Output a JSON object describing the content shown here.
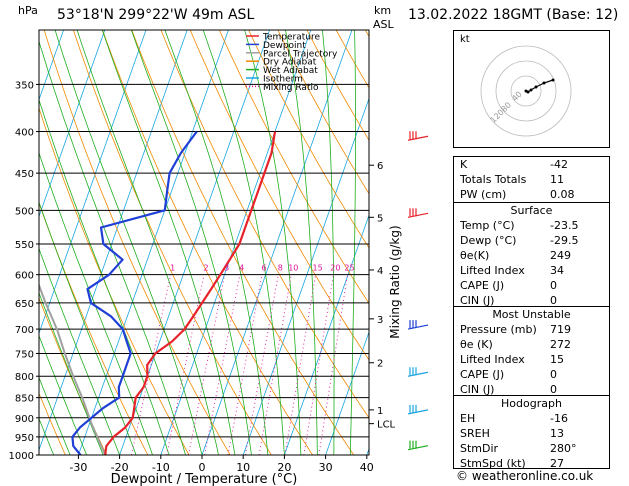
{
  "header": {
    "hpa_label": "hPa",
    "location": "53°18'N 299°22'W 49m ASL",
    "km_label": "km",
    "asl_label": "ASL",
    "datetime": "13.02.2022 18GMT (Base: 12)"
  },
  "footer": {
    "copyright": "© weatheronline.co.uk"
  },
  "chart_data": {
    "type": "skew-t",
    "xlabel": "Dewpoint / Temperature (°C)",
    "ylabel_right": "Mixing Ratio (g/kg)",
    "x_ticks": [
      -30,
      -20,
      -10,
      0,
      10,
      20,
      30,
      40
    ],
    "xlim": [
      -40,
      40
    ],
    "pressure_ticks": [
      350,
      400,
      450,
      500,
      550,
      600,
      650,
      700,
      750,
      800,
      850,
      900,
      950,
      1000
    ],
    "pressure_range": [
      300,
      1000
    ],
    "km_ticks": [
      {
        "label": "1",
        "p": 880
      },
      {
        "label": "2",
        "p": 770
      },
      {
        "label": "3",
        "p": 680
      },
      {
        "label": "4",
        "p": 592
      },
      {
        "label": "5",
        "p": 510
      },
      {
        "label": "6",
        "p": 440
      },
      {
        "label": "LCL",
        "p": 915
      }
    ],
    "mixing_ratio_labels": [
      "1",
      "2",
      "3",
      "4",
      "6",
      "8",
      "10",
      "15",
      "20",
      "25"
    ],
    "legend": [
      {
        "name": "Temperature",
        "color": "#e8222a",
        "style": "solid"
      },
      {
        "name": "Dewpoint",
        "color": "#1f3fd6",
        "style": "solid"
      },
      {
        "name": "Parcel Trajectory",
        "color": "#a0a0a0",
        "style": "solid"
      },
      {
        "name": "Dry Adiabat",
        "color": "#f08a00",
        "style": "solid"
      },
      {
        "name": "Wet Adiabat",
        "color": "#1fae1f",
        "style": "solid"
      },
      {
        "name": "Isotherm",
        "color": "#1aa6e0",
        "style": "solid"
      },
      {
        "name": "Mixing Ratio",
        "color": "#e0149c",
        "style": "dotted"
      }
    ],
    "series": [
      {
        "name": "Temperature",
        "points": [
          [
            1000,
            -23.5
          ],
          [
            975,
            -24
          ],
          [
            950,
            -23
          ],
          [
            925,
            -21
          ],
          [
            900,
            -20
          ],
          [
            875,
            -20.5
          ],
          [
            850,
            -21
          ],
          [
            825,
            -20
          ],
          [
            800,
            -20
          ],
          [
            775,
            -21
          ],
          [
            750,
            -20
          ],
          [
            725,
            -17
          ],
          [
            700,
            -15
          ],
          [
            675,
            -14
          ],
          [
            650,
            -13
          ],
          [
            625,
            -12
          ],
          [
            600,
            -11
          ],
          [
            575,
            -10
          ],
          [
            550,
            -9
          ],
          [
            525,
            -9
          ],
          [
            500,
            -9
          ],
          [
            475,
            -9
          ],
          [
            450,
            -9
          ],
          [
            425,
            -9
          ],
          [
            400,
            -10
          ]
        ]
      },
      {
        "name": "Dewpoint",
        "points": [
          [
            1000,
            -29.5
          ],
          [
            975,
            -32
          ],
          [
            950,
            -33
          ],
          [
            925,
            -32
          ],
          [
            900,
            -30
          ],
          [
            875,
            -28
          ],
          [
            850,
            -25
          ],
          [
            825,
            -26
          ],
          [
            800,
            -26
          ],
          [
            775,
            -26
          ],
          [
            750,
            -26
          ],
          [
            725,
            -28
          ],
          [
            700,
            -30
          ],
          [
            675,
            -34
          ],
          [
            650,
            -40
          ],
          [
            625,
            -42
          ],
          [
            600,
            -38
          ],
          [
            575,
            -36
          ],
          [
            550,
            -42
          ],
          [
            525,
            -44
          ],
          [
            500,
            -30
          ],
          [
            475,
            -31
          ],
          [
            450,
            -32
          ],
          [
            425,
            -31
          ],
          [
            400,
            -29
          ]
        ]
      },
      {
        "name": "Parcel Trajectory",
        "points": [
          [
            1000,
            -23.5
          ],
          [
            950,
            -27
          ],
          [
            915,
            -29.5
          ],
          [
            850,
            -34
          ],
          [
            800,
            -38
          ],
          [
            750,
            -42
          ],
          [
            700,
            -46
          ],
          [
            650,
            -51
          ],
          [
            600,
            -56
          ]
        ]
      }
    ],
    "wind_barbs": [
      {
        "p": 410,
        "color": "#e8222a"
      },
      {
        "p": 510,
        "color": "#e8222a"
      },
      {
        "p": 700,
        "color": "#1f3fd6"
      },
      {
        "p": 800,
        "color": "#1aa6e0"
      },
      {
        "p": 890,
        "color": "#1aa6e0"
      },
      {
        "p": 985,
        "color": "#1fae1f"
      }
    ],
    "hodograph": {
      "label": "kt",
      "ring_labels": [
        "120",
        "80",
        "40"
      ],
      "points": [
        [
          0,
          0
        ],
        [
          2,
          -1
        ],
        [
          5,
          1
        ],
        [
          10,
          4
        ],
        [
          18,
          8
        ],
        [
          27,
          11
        ]
      ]
    }
  },
  "indices": {
    "top": [
      {
        "label": "K",
        "value": "-42"
      },
      {
        "label": "Totals Totals",
        "value": "11"
      },
      {
        "label": "PW (cm)",
        "value": "0.08"
      }
    ],
    "surface": {
      "title": "Surface",
      "rows": [
        {
          "label": "Temp (°C)",
          "value": "-23.5"
        },
        {
          "label": "Dewp (°C)",
          "value": "-29.5"
        },
        {
          "label": "θe(K)",
          "value": "249"
        },
        {
          "label": "Lifted Index",
          "value": "34"
        },
        {
          "label": "CAPE (J)",
          "value": "0"
        },
        {
          "label": "CIN (J)",
          "value": "0"
        }
      ]
    },
    "most_unstable": {
      "title": "Most Unstable",
      "rows": [
        {
          "label": "Pressure (mb)",
          "value": "719"
        },
        {
          "label": "θe (K)",
          "value": "272"
        },
        {
          "label": "Lifted Index",
          "value": "15"
        },
        {
          "label": "CAPE (J)",
          "value": "0"
        },
        {
          "label": "CIN (J)",
          "value": "0"
        }
      ]
    },
    "hodograph": {
      "title": "Hodograph",
      "rows": [
        {
          "label": "EH",
          "value": "-16"
        },
        {
          "label": "SREH",
          "value": "13"
        },
        {
          "label": "StmDir",
          "value": "280°"
        },
        {
          "label": "StmSpd (kt)",
          "value": "27"
        }
      ]
    }
  }
}
